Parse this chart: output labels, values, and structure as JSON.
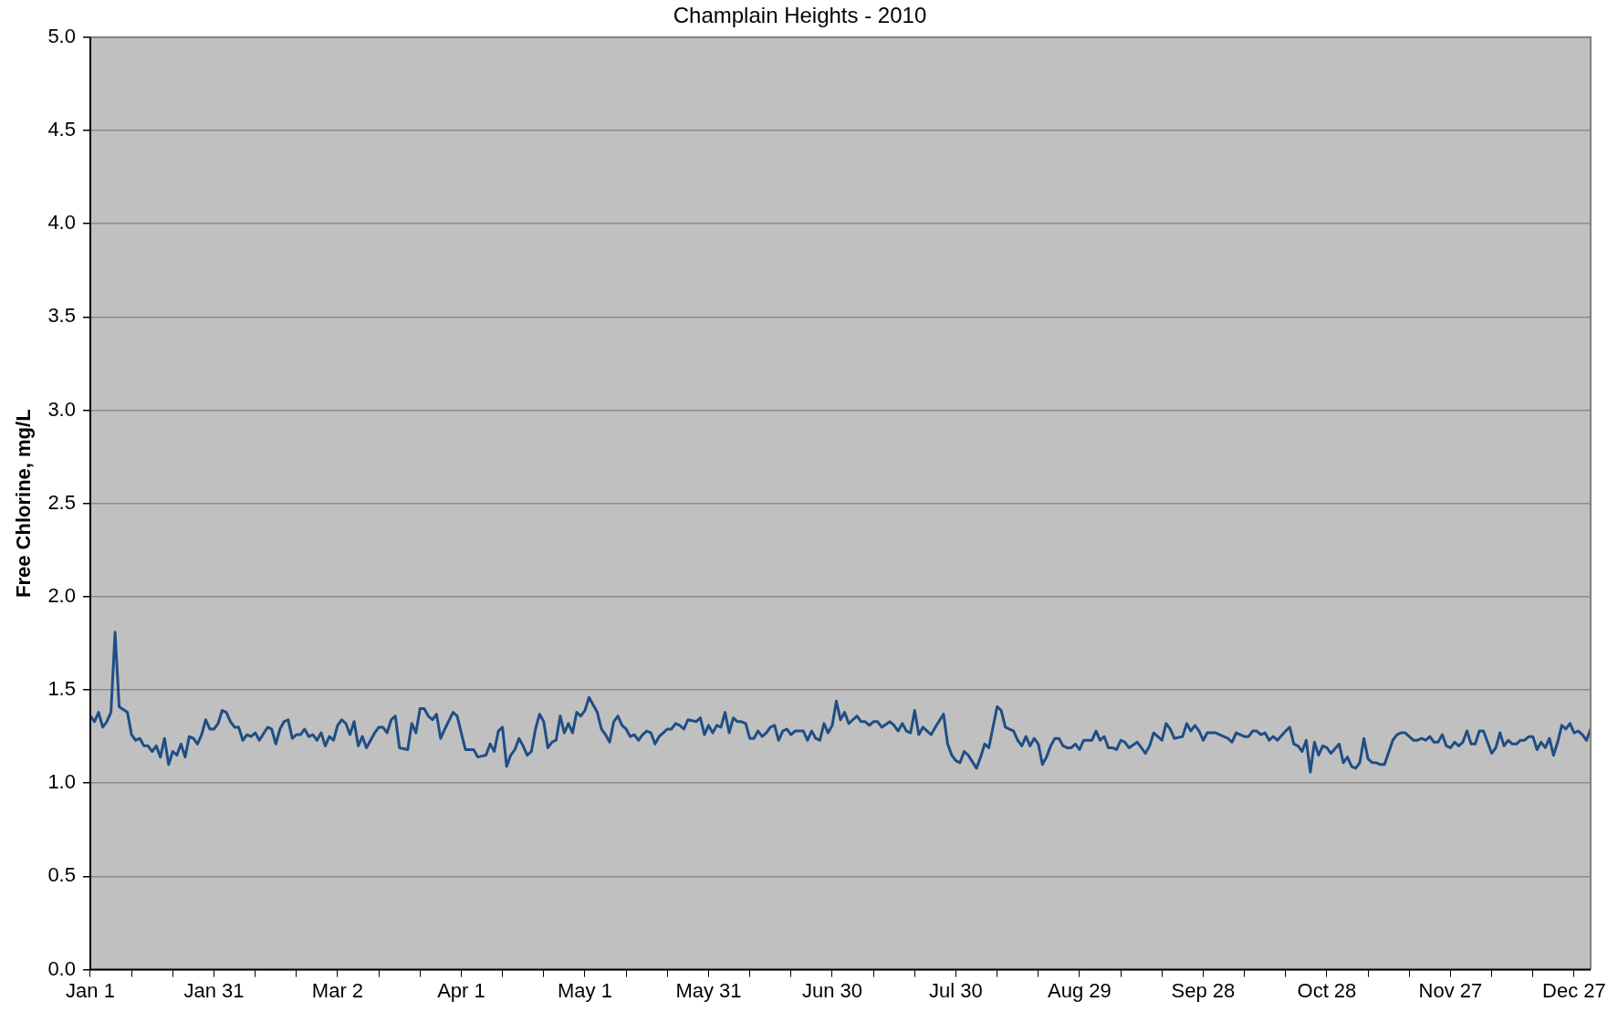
{
  "chart_data": {
    "type": "line",
    "title": "Champlain Heights - 2010",
    "ylabel": "Free Chlorine, mg/L",
    "color": "#1f4e85",
    "grid": "y",
    "line_style": "solid",
    "xlim": [
      "--01-01",
      "--12-31"
    ],
    "xticks": [
      {
        "value": "--01-01",
        "label": "Jan 1"
      },
      {
        "value": "--01-11",
        "label": null
      },
      {
        "value": "--01-21",
        "label": null
      },
      {
        "value": "--01-31",
        "label": "Jan 31"
      },
      {
        "value": "--02-10",
        "label": null
      },
      {
        "value": "--02-20",
        "label": null
      },
      {
        "value": "--03-02",
        "label": "Mar 2"
      },
      {
        "value": "--03-12",
        "label": null
      },
      {
        "value": "--03-22",
        "label": null
      },
      {
        "value": "--04-01",
        "label": "Apr 1"
      },
      {
        "value": "--04-11",
        "label": null
      },
      {
        "value": "--04-21",
        "label": null
      },
      {
        "value": "--05-01",
        "label": "May 1"
      },
      {
        "value": "--05-11",
        "label": null
      },
      {
        "value": "--05-21",
        "label": null
      },
      {
        "value": "--05-31",
        "label": "May 31"
      },
      {
        "value": "--06-10",
        "label": null
      },
      {
        "value": "--06-20",
        "label": null
      },
      {
        "value": "--06-30",
        "label": "Jun 30"
      },
      {
        "value": "--07-10",
        "label": null
      },
      {
        "value": "--07-20",
        "label": null
      },
      {
        "value": "--07-30",
        "label": "Jul 30"
      },
      {
        "value": "--08-09",
        "label": null
      },
      {
        "value": "--08-19",
        "label": null
      },
      {
        "value": "--08-29",
        "label": "Aug 29"
      },
      {
        "value": "--09-08",
        "label": null
      },
      {
        "value": "--09-18",
        "label": null
      },
      {
        "value": "--09-28",
        "label": "Sep 28"
      },
      {
        "value": "--10-08",
        "label": null
      },
      {
        "value": "--10-18",
        "label": null
      },
      {
        "value": "--10-28",
        "label": "Oct 28"
      },
      {
        "value": "--11-07",
        "label": null
      },
      {
        "value": "--11-17",
        "label": null
      },
      {
        "value": "--11-27",
        "label": "Nov 27"
      },
      {
        "value": "--12-07",
        "label": null
      },
      {
        "value": "--12-17",
        "label": null
      },
      {
        "value": "--12-27",
        "label": "Dec 27"
      }
    ],
    "ylim": [
      0,
      5
    ],
    "yticks": [
      {
        "value": 0,
        "label": "0.0"
      },
      0.5,
      {
        "value": 1,
        "label": "1.0"
      },
      1.5,
      {
        "value": 2,
        "label": "2.0"
      },
      2.5,
      {
        "value": 3,
        "label": "3.0"
      },
      3.5,
      {
        "value": 4,
        "label": "4.0"
      },
      4.5,
      {
        "value": 5,
        "label": "5.0"
      }
    ],
    "x": [
      "--01-01",
      "--01-02",
      "--01-03",
      "--01-04",
      "--01-05",
      "--01-06",
      "--01-07",
      "--01-08",
      "--01-10",
      "--01-11",
      "--01-12",
      "--01-13",
      "--01-14",
      "--01-15",
      "--01-16",
      "--01-17",
      "--01-18",
      "--01-19",
      "--01-20",
      "--01-21",
      "--01-22",
      "--01-23",
      "--01-24",
      "--01-25",
      "--01-26",
      "--01-27",
      "--01-28",
      "--01-29",
      "--01-30",
      "--01-31",
      "--02-01",
      "--02-02",
      "--02-03",
      "--02-04",
      "--02-05",
      "--02-06",
      "--02-07",
      "--02-08",
      "--02-09",
      "--02-10",
      "--02-11",
      "--02-13",
      "--02-14",
      "--02-15",
      "--02-16",
      "--02-17",
      "--02-18",
      "--02-19",
      "--02-20",
      "--02-21",
      "--02-22",
      "--02-23",
      "--02-24",
      "--02-25",
      "--02-26",
      "--02-27",
      "--02-28",
      "--03-01",
      "--03-02",
      "--03-03",
      "--03-04",
      "--03-05",
      "--03-06",
      "--03-07",
      "--03-08",
      "--03-09",
      "--03-11",
      "--03-12",
      "--03-13",
      "--03-14",
      "--03-15",
      "--03-16",
      "--03-17",
      "--03-19",
      "--03-20",
      "--03-21",
      "--03-22",
      "--03-23",
      "--03-24",
      "--03-25",
      "--03-26",
      "--03-27",
      "--03-28",
      "--03-30",
      "--03-31",
      "--04-02",
      "--04-04",
      "--04-05",
      "--04-07",
      "--04-08",
      "--04-09",
      "--04-10",
      "--04-11",
      "--04-12",
      "--04-13",
      "--04-14",
      "--04-15",
      "--04-16",
      "--04-17",
      "--04-18",
      "--04-19",
      "--04-20",
      "--04-21",
      "--04-22",
      "--04-23",
      "--04-24",
      "--04-25",
      "--04-26",
      "--04-27",
      "--04-28",
      "--04-29",
      "--04-30",
      "--05-01",
      "--05-02",
      "--05-04",
      "--05-05",
      "--05-06",
      "--05-07",
      "--05-08",
      "--05-09",
      "--05-10",
      "--05-11",
      "--05-12",
      "--05-13",
      "--05-14",
      "--05-15",
      "--05-16",
      "--05-17",
      "--05-18",
      "--05-19",
      "--05-20",
      "--05-21",
      "--05-22",
      "--05-23",
      "--05-24",
      "--05-25",
      "--05-26",
      "--05-28",
      "--05-29",
      "--05-30",
      "--05-31",
      "--06-01",
      "--06-02",
      "--06-03",
      "--06-04",
      "--06-05",
      "--06-06",
      "--06-07",
      "--06-08",
      "--06-09",
      "--06-10",
      "--06-11",
      "--06-12",
      "--06-13",
      "--06-14",
      "--06-15",
      "--06-16",
      "--06-17",
      "--06-18",
      "--06-19",
      "--06-20",
      "--06-21",
      "--06-22",
      "--06-23",
      "--06-24",
      "--06-25",
      "--06-26",
      "--06-27",
      "--06-28",
      "--06-29",
      "--06-30",
      "--07-01",
      "--07-02",
      "--07-03",
      "--07-04",
      "--07-05",
      "--07-06",
      "--07-07",
      "--07-08",
      "--07-09",
      "--07-10",
      "--07-11",
      "--07-12",
      "--07-14",
      "--07-15",
      "--07-16",
      "--07-17",
      "--07-18",
      "--07-19",
      "--07-20",
      "--07-21",
      "--07-22",
      "--07-24",
      "--07-25",
      "--07-27",
      "--07-28",
      "--07-29",
      "--07-30",
      "--07-31",
      "--08-01",
      "--08-02",
      "--08-04",
      "--08-05",
      "--08-06",
      "--08-07",
      "--08-09",
      "--08-10",
      "--08-11",
      "--08-13",
      "--08-14",
      "--08-15",
      "--08-16",
      "--08-17",
      "--08-18",
      "--08-19",
      "--08-20",
      "--08-21",
      "--08-22",
      "--08-23",
      "--08-24",
      "--08-25",
      "--08-26",
      "--08-27",
      "--08-28",
      "--08-29",
      "--08-30",
      "--09-01",
      "--09-02",
      "--09-03",
      "--09-04",
      "--09-05",
      "--09-06",
      "--09-07",
      "--09-08",
      "--09-09",
      "--09-10",
      "--09-12",
      "--09-13",
      "--09-14",
      "--09-15",
      "--09-16",
      "--09-18",
      "--09-19",
      "--09-20",
      "--09-21",
      "--09-23",
      "--09-24",
      "--09-25",
      "--09-26",
      "--09-27",
      "--09-28",
      "--09-29",
      "--09-30",
      "--10-01",
      "--10-02",
      "--10-04",
      "--10-05",
      "--10-06",
      "--10-07",
      "--10-08",
      "--10-09",
      "--10-10",
      "--10-11",
      "--10-12",
      "--10-13",
      "--10-14",
      "--10-15",
      "--10-16",
      "--10-18",
      "--10-19",
      "--10-20",
      "--10-21",
      "--10-22",
      "--10-23",
      "--10-24",
      "--10-25",
      "--10-26",
      "--10-27",
      "--10-28",
      "--10-29",
      "--10-31",
      "--11-01",
      "--11-02",
      "--11-03",
      "--11-04",
      "--11-05",
      "--11-06",
      "--11-07",
      "--11-08",
      "--11-09",
      "--11-10",
      "--11-11",
      "--11-13",
      "--11-14",
      "--11-15",
      "--11-16",
      "--11-18",
      "--11-19",
      "--11-20",
      "--11-21",
      "--11-22",
      "--11-23",
      "--11-24",
      "--11-25",
      "--11-26",
      "--11-27",
      "--11-28",
      "--11-29",
      "--11-30",
      "--12-01",
      "--12-02",
      "--12-03",
      "--12-04",
      "--12-05",
      "--12-07",
      "--12-08",
      "--12-09",
      "--12-10",
      "--12-11",
      "--12-12",
      "--12-13",
      "--12-14",
      "--12-15",
      "--12-16",
      "--12-17",
      "--12-18",
      "--12-19",
      "--12-20",
      "--12-21",
      "--12-22",
      "--12-23",
      "--12-24",
      "--12-25",
      "--12-26",
      "--12-27",
      "--12-28",
      "--12-29",
      "--12-30",
      "--12-31"
    ],
    "values": [
      1.36,
      1.33,
      1.38,
      1.3,
      1.33,
      1.38,
      1.81,
      1.41,
      1.38,
      1.26,
      1.23,
      1.24,
      1.2,
      1.2,
      1.17,
      1.2,
      1.14,
      1.24,
      1.1,
      1.17,
      1.15,
      1.21,
      1.14,
      1.25,
      1.24,
      1.21,
      1.26,
      1.34,
      1.29,
      1.29,
      1.32,
      1.39,
      1.38,
      1.33,
      1.3,
      1.3,
      1.23,
      1.26,
      1.25,
      1.27,
      1.23,
      1.3,
      1.29,
      1.21,
      1.29,
      1.33,
      1.34,
      1.24,
      1.26,
      1.26,
      1.29,
      1.25,
      1.26,
      1.23,
      1.27,
      1.2,
      1.25,
      1.23,
      1.31,
      1.34,
      1.32,
      1.26,
      1.33,
      1.2,
      1.25,
      1.19,
      1.27,
      1.3,
      1.3,
      1.27,
      1.34,
      1.36,
      1.19,
      1.18,
      1.32,
      1.27,
      1.4,
      1.4,
      1.36,
      1.34,
      1.37,
      1.24,
      1.29,
      1.38,
      1.36,
      1.18,
      1.18,
      1.14,
      1.15,
      1.21,
      1.17,
      1.28,
      1.3,
      1.09,
      1.15,
      1.18,
      1.24,
      1.2,
      1.15,
      1.17,
      1.29,
      1.37,
      1.33,
      1.19,
      1.22,
      1.23,
      1.36,
      1.27,
      1.32,
      1.27,
      1.38,
      1.36,
      1.39,
      1.46,
      1.38,
      1.29,
      1.26,
      1.22,
      1.33,
      1.36,
      1.31,
      1.29,
      1.25,
      1.26,
      1.23,
      1.26,
      1.28,
      1.27,
      1.21,
      1.25,
      1.27,
      1.29,
      1.29,
      1.32,
      1.31,
      1.29,
      1.34,
      1.33,
      1.35,
      1.26,
      1.31,
      1.27,
      1.31,
      1.3,
      1.38,
      1.27,
      1.35,
      1.33,
      1.33,
      1.32,
      1.24,
      1.24,
      1.28,
      1.25,
      1.27,
      1.3,
      1.31,
      1.23,
      1.28,
      1.29,
      1.26,
      1.28,
      1.28,
      1.28,
      1.23,
      1.28,
      1.24,
      1.23,
      1.32,
      1.27,
      1.31,
      1.44,
      1.34,
      1.38,
      1.32,
      1.34,
      1.36,
      1.33,
      1.33,
      1.31,
      1.33,
      1.33,
      1.3,
      1.33,
      1.31,
      1.28,
      1.32,
      1.28,
      1.27,
      1.39,
      1.26,
      1.3,
      1.26,
      1.3,
      1.37,
      1.21,
      1.15,
      1.12,
      1.11,
      1.17,
      1.15,
      1.08,
      1.14,
      1.21,
      1.19,
      1.41,
      1.39,
      1.3,
      1.28,
      1.23,
      1.2,
      1.25,
      1.2,
      1.24,
      1.21,
      1.1,
      1.14,
      1.2,
      1.24,
      1.24,
      1.2,
      1.19,
      1.19,
      1.21,
      1.18,
      1.23,
      1.23,
      1.28,
      1.23,
      1.25,
      1.19,
      1.19,
      1.18,
      1.23,
      1.22,
      1.19,
      1.22,
      1.19,
      1.16,
      1.2,
      1.27,
      1.23,
      1.32,
      1.29,
      1.24,
      1.25,
      1.32,
      1.28,
      1.31,
      1.28,
      1.23,
      1.27,
      1.27,
      1.27,
      1.26,
      1.24,
      1.22,
      1.27,
      1.26,
      1.25,
      1.25,
      1.28,
      1.28,
      1.26,
      1.27,
      1.23,
      1.25,
      1.23,
      1.28,
      1.3,
      1.21,
      1.2,
      1.17,
      1.23,
      1.06,
      1.22,
      1.15,
      1.2,
      1.19,
      1.16,
      1.21,
      1.11,
      1.14,
      1.09,
      1.08,
      1.11,
      1.24,
      1.13,
      1.11,
      1.11,
      1.1,
      1.1,
      1.23,
      1.26,
      1.27,
      1.27,
      1.23,
      1.23,
      1.24,
      1.23,
      1.25,
      1.22,
      1.22,
      1.26,
      1.2,
      1.19,
      1.22,
      1.2,
      1.22,
      1.28,
      1.21,
      1.21,
      1.28,
      1.28,
      1.16,
      1.19,
      1.27,
      1.2,
      1.23,
      1.21,
      1.21,
      1.23,
      1.23,
      1.25,
      1.25,
      1.18,
      1.22,
      1.19,
      1.24,
      1.15,
      1.22,
      1.31,
      1.29,
      1.32,
      1.27,
      1.28,
      1.26,
      1.23,
      1.29
    ]
  }
}
